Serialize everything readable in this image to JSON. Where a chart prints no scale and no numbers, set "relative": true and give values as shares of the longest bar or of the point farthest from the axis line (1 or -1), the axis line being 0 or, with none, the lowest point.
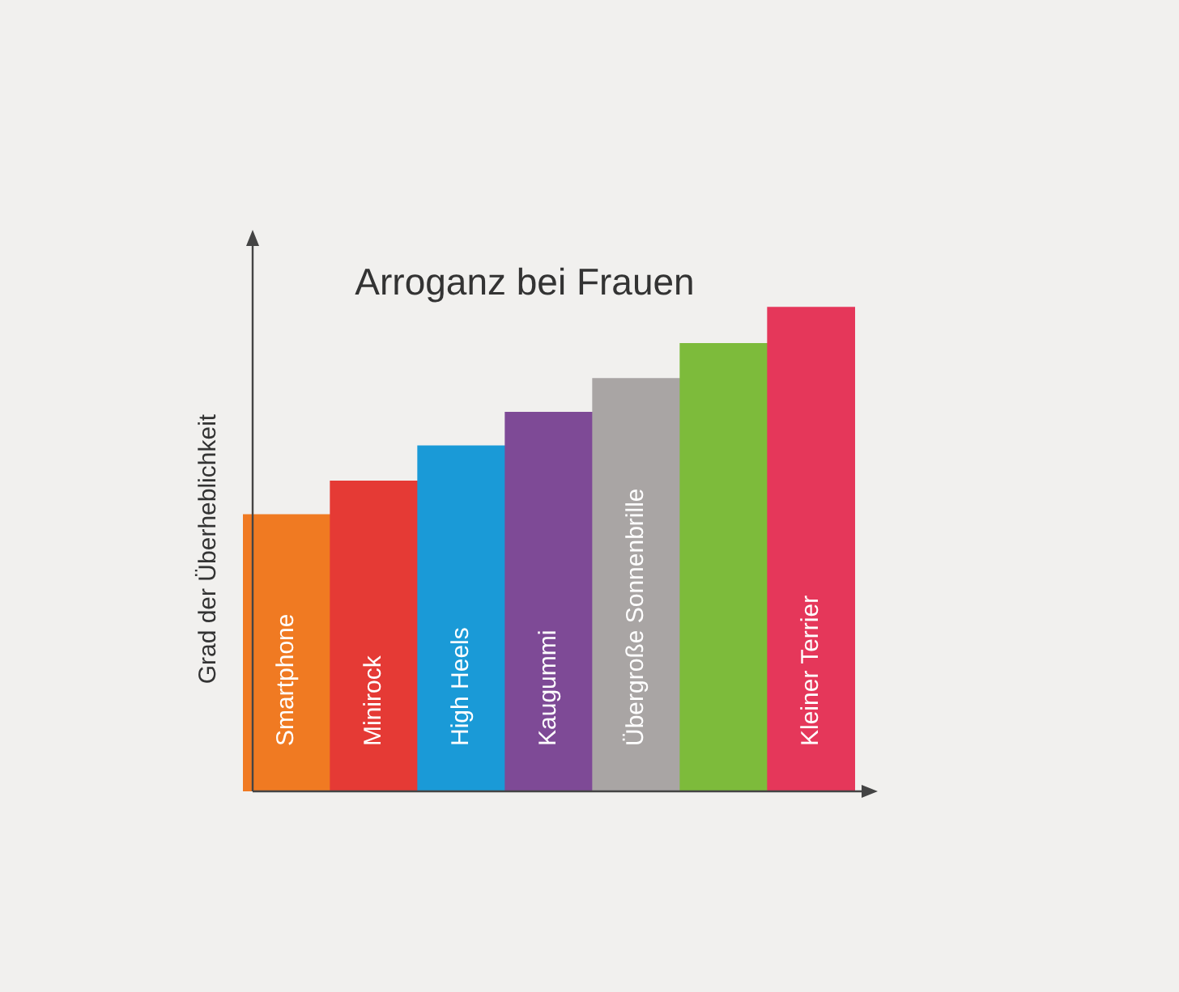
{
  "chart_data": {
    "type": "bar",
    "title": "Arroganz bei Frauen",
    "ylabel": "Grad der Überheblichkeit",
    "relative": true,
    "legend": false,
    "grid": false,
    "categories": [
      "Smartphone",
      "Minirock",
      "High Heels",
      "Kaugummi",
      "Übergroße Sonnenbrille",
      null,
      "Kleiner Terrier"
    ],
    "values": [
      0.571,
      0.64,
      0.713,
      0.782,
      0.852,
      0.924,
      1
    ],
    "colors": [
      "#f07a22",
      "#e53a35",
      "#1a9ad7",
      "#7e4a96",
      "#a9a5a4",
      "#7dbb3b",
      "#e5375a"
    ]
  }
}
